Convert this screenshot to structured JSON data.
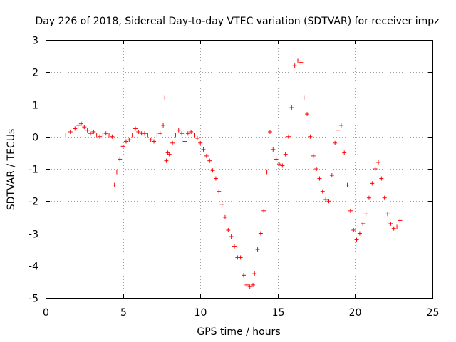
{
  "chart_data": {
    "type": "scatter",
    "title": "Day 226 of 2018, Sidereal Day-to-day VTEC variation (SDTVAR) for receiver impz",
    "xlabel": "GPS time / hours",
    "ylabel": "SDTVAR / TECUs",
    "xlim": [
      0,
      25
    ],
    "ylim": [
      -5,
      3
    ],
    "xticks": [
      "0",
      "5",
      "10",
      "15",
      "20",
      "25"
    ],
    "yticks": [
      "3",
      "2",
      "1",
      "0",
      "-1",
      "-2",
      "-3",
      "-4",
      "-5"
    ],
    "grid": true,
    "marker": "plus",
    "color": "#ff0000",
    "series": [
      {
        "x": [
          1.3,
          1.6,
          1.9,
          2.1,
          2.3,
          2.5,
          2.7,
          2.9,
          3.1,
          3.3,
          3.5,
          3.7,
          3.9,
          4.1,
          4.3,
          4.45,
          4.6,
          4.8,
          5.0,
          5.2,
          5.4,
          5.6,
          5.8,
          6.0,
          6.2,
          6.4,
          6.6,
          6.8,
          7.0,
          7.2,
          7.4,
          7.6,
          7.7,
          7.8,
          7.9,
          8.0,
          8.2,
          8.4,
          8.6,
          8.8,
          9.0,
          9.2,
          9.4,
          9.6,
          9.8,
          10.0,
          10.2,
          10.4,
          10.6,
          10.8,
          11.0,
          11.2,
          11.4,
          11.6,
          11.8,
          12.0,
          12.2,
          12.4,
          12.6,
          12.8,
          13.0,
          13.2,
          13.4,
          13.5,
          13.7,
          13.9,
          14.1,
          14.3,
          14.5,
          14.7,
          14.9,
          15.1,
          15.3,
          15.5,
          15.7,
          15.9,
          16.1,
          16.3,
          16.5,
          16.7,
          16.9,
          17.1,
          17.3,
          17.5,
          17.7,
          17.9,
          18.1,
          18.3,
          18.5,
          18.7,
          18.9,
          19.1,
          19.3,
          19.5,
          19.7,
          19.9,
          20.1,
          20.3,
          20.5,
          20.7,
          20.9,
          21.1,
          21.3,
          21.5,
          21.7,
          21.9,
          22.1,
          22.3,
          22.5,
          22.7,
          22.9
        ],
        "y": [
          0.05,
          0.15,
          0.25,
          0.35,
          0.4,
          0.3,
          0.2,
          0.1,
          0.15,
          0.05,
          0.0,
          0.05,
          0.1,
          0.05,
          0.0,
          -1.5,
          -1.1,
          -0.7,
          -0.3,
          -0.15,
          -0.1,
          0.05,
          0.25,
          0.15,
          0.1,
          0.1,
          0.05,
          -0.1,
          -0.15,
          0.05,
          0.1,
          0.35,
          1.2,
          -0.75,
          -0.5,
          -0.55,
          -0.2,
          0.05,
          0.2,
          0.1,
          -0.15,
          0.1,
          0.15,
          0.05,
          -0.05,
          -0.2,
          -0.4,
          -0.6,
          -0.75,
          -1.05,
          -1.3,
          -1.7,
          -2.1,
          -2.5,
          -2.9,
          -3.1,
          -3.4,
          -3.75,
          -3.75,
          -4.3,
          -4.6,
          -4.65,
          -4.6,
          -4.25,
          -3.5,
          -3.0,
          -2.3,
          -1.1,
          0.15,
          -0.4,
          -0.7,
          -0.85,
          -0.9,
          -0.55,
          0.0,
          0.9,
          2.2,
          2.35,
          2.3,
          1.2,
          0.7,
          0.0,
          -0.6,
          -1.0,
          -1.3,
          -1.7,
          -1.95,
          -2.0,
          -1.2,
          -0.2,
          0.2,
          0.35,
          -0.5,
          -1.5,
          -2.3,
          -2.9,
          -3.2,
          -3.0,
          -2.7,
          -2.4,
          -1.9,
          -1.45,
          -1.0,
          -0.8,
          -1.3,
          -1.9,
          -2.4,
          -2.7,
          -2.85,
          -2.8,
          -2.6
        ]
      }
    ]
  }
}
